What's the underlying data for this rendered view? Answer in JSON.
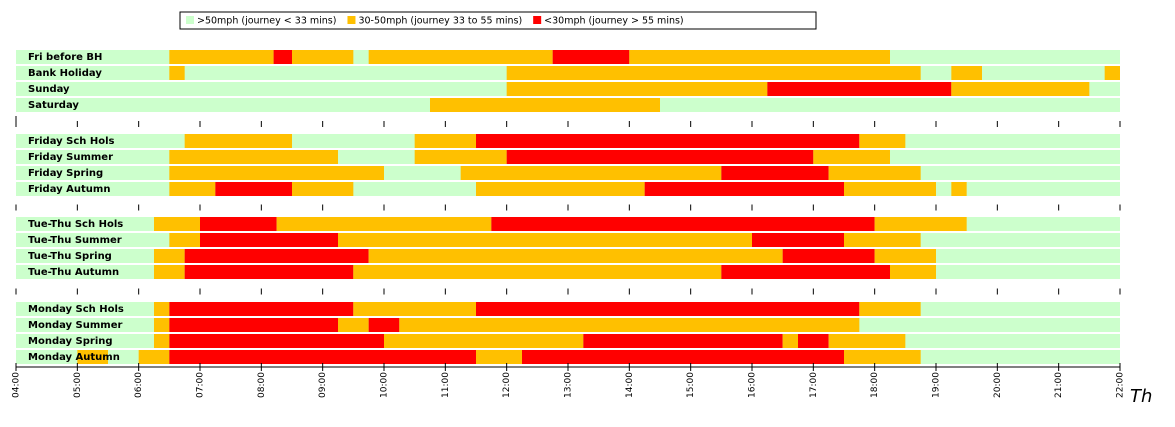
{
  "chart_data": {
    "type": "timeline",
    "legend": [
      {
        "name": ">50mph (journey < 33 mins)",
        "color": "#ccffcc"
      },
      {
        "name": "30-50mph (journey 33 to 55 mins)",
        "color": "#ffc000"
      },
      {
        "name": "<30mph (journey > 55 mins)",
        "color": "#ff0000"
      }
    ],
    "xlim": [
      4,
      22
    ],
    "xticks": [
      {
        "value": 4,
        "label": "04:00"
      },
      {
        "value": 5,
        "label": "05:00"
      },
      {
        "value": 6,
        "label": "06:00"
      },
      {
        "value": 7,
        "label": "07:00"
      },
      {
        "value": 8,
        "label": "08:00"
      },
      {
        "value": 9,
        "label": "09:00"
      },
      {
        "value": 10,
        "label": "10:00"
      },
      {
        "value": 11,
        "label": "11:00"
      },
      {
        "value": 12,
        "label": "12:00"
      },
      {
        "value": 13,
        "label": "13:00"
      },
      {
        "value": 14,
        "label": "14:00"
      },
      {
        "value": 15,
        "label": "15:00"
      },
      {
        "value": 16,
        "label": "16:00"
      },
      {
        "value": 17,
        "label": "17:00"
      },
      {
        "value": 18,
        "label": "18:00"
      },
      {
        "value": 19,
        "label": "19:00"
      },
      {
        "value": 20,
        "label": "20:00"
      },
      {
        "value": 21,
        "label": "21:00"
      },
      {
        "value": 22,
        "label": "22:00"
      }
    ],
    "groups": [
      {
        "rows": [
          {
            "label": "Fri before BH",
            "segments": [
              {
                "start": 6.5,
                "end": 8.2,
                "level": 1
              },
              {
                "start": 8.2,
                "end": 8.5,
                "level": 2
              },
              {
                "start": 8.5,
                "end": 9.5,
                "level": 1
              },
              {
                "start": 9.75,
                "end": 12.75,
                "level": 1
              },
              {
                "start": 12.75,
                "end": 14,
                "level": 2
              },
              {
                "start": 14,
                "end": 18.25,
                "level": 1
              }
            ]
          },
          {
            "label": "Bank Holiday",
            "segments": [
              {
                "start": 6.5,
                "end": 6.75,
                "level": 1
              },
              {
                "start": 12,
                "end": 18.75,
                "level": 1
              },
              {
                "start": 19.25,
                "end": 19.75,
                "level": 1
              },
              {
                "start": 21.75,
                "end": 22,
                "level": 1
              }
            ]
          },
          {
            "label": "Sunday",
            "segments": [
              {
                "start": 12,
                "end": 16.25,
                "level": 1
              },
              {
                "start": 16.25,
                "end": 19.25,
                "level": 2
              },
              {
                "start": 19.25,
                "end": 21.5,
                "level": 1
              }
            ]
          },
          {
            "label": "Saturday",
            "segments": [
              {
                "start": 10.75,
                "end": 14.5,
                "level": 1
              }
            ]
          }
        ]
      },
      {
        "rows": [
          {
            "label": "Friday Sch Hols",
            "segments": [
              {
                "start": 6.75,
                "end": 8.5,
                "level": 1
              },
              {
                "start": 10.5,
                "end": 11.5,
                "level": 1
              },
              {
                "start": 11.5,
                "end": 17.75,
                "level": 2
              },
              {
                "start": 17.75,
                "end": 18.5,
                "level": 1
              }
            ]
          },
          {
            "label": "Friday Summer",
            "segments": [
              {
                "start": 6.5,
                "end": 9.25,
                "level": 1
              },
              {
                "start": 10.5,
                "end": 12,
                "level": 1
              },
              {
                "start": 12,
                "end": 17,
                "level": 2
              },
              {
                "start": 17,
                "end": 18.25,
                "level": 1
              }
            ]
          },
          {
            "label": "Friday Spring",
            "segments": [
              {
                "start": 6.5,
                "end": 10,
                "level": 1
              },
              {
                "start": 11.25,
                "end": 15.5,
                "level": 1
              },
              {
                "start": 15.5,
                "end": 17.25,
                "level": 2
              },
              {
                "start": 17.25,
                "end": 18.75,
                "level": 1
              }
            ]
          },
          {
            "label": "Friday Autumn",
            "segments": [
              {
                "start": 6.5,
                "end": 7.25,
                "level": 1
              },
              {
                "start": 7.25,
                "end": 8.5,
                "level": 2
              },
              {
                "start": 8.5,
                "end": 9.5,
                "level": 1
              },
              {
                "start": 11.5,
                "end": 14.25,
                "level": 1
              },
              {
                "start": 14.25,
                "end": 17.5,
                "level": 2
              },
              {
                "start": 17.5,
                "end": 19,
                "level": 1
              },
              {
                "start": 19.25,
                "end": 19.5,
                "level": 1
              }
            ]
          }
        ]
      },
      {
        "rows": [
          {
            "label": "Tue-Thu Sch Hols",
            "segments": [
              {
                "start": 6.25,
                "end": 7,
                "level": 1
              },
              {
                "start": 7,
                "end": 8.25,
                "level": 2
              },
              {
                "start": 8.25,
                "end": 11.75,
                "level": 1
              },
              {
                "start": 11.75,
                "end": 18,
                "level": 2
              },
              {
                "start": 18,
                "end": 19.5,
                "level": 1
              }
            ]
          },
          {
            "label": "Tue-Thu Summer",
            "segments": [
              {
                "start": 6.5,
                "end": 7,
                "level": 1
              },
              {
                "start": 7,
                "end": 9.25,
                "level": 2
              },
              {
                "start": 9.25,
                "end": 16,
                "level": 1
              },
              {
                "start": 16,
                "end": 17.5,
                "level": 2
              },
              {
                "start": 17.5,
                "end": 18.75,
                "level": 1
              }
            ]
          },
          {
            "label": "Tue-Thu Spring",
            "segments": [
              {
                "start": 6.25,
                "end": 6.75,
                "level": 1
              },
              {
                "start": 6.75,
                "end": 9.75,
                "level": 2
              },
              {
                "start": 9.75,
                "end": 16.5,
                "level": 1
              },
              {
                "start": 16.5,
                "end": 18,
                "level": 2
              },
              {
                "start": 18,
                "end": 19,
                "level": 1
              }
            ]
          },
          {
            "label": "Tue-Thu Autumn",
            "segments": [
              {
                "start": 6.25,
                "end": 6.75,
                "level": 1
              },
              {
                "start": 6.75,
                "end": 9.5,
                "level": 2
              },
              {
                "start": 9.5,
                "end": 15.5,
                "level": 1
              },
              {
                "start": 15.5,
                "end": 18.25,
                "level": 2
              },
              {
                "start": 18.25,
                "end": 19,
                "level": 1
              }
            ]
          }
        ]
      },
      {
        "rows": [
          {
            "label": "Monday Sch Hols",
            "segments": [
              {
                "start": 6.25,
                "end": 6.5,
                "level": 1
              },
              {
                "start": 6.5,
                "end": 9.5,
                "level": 2
              },
              {
                "start": 9.5,
                "end": 11.5,
                "level": 1
              },
              {
                "start": 11.5,
                "end": 17.75,
                "level": 2
              },
              {
                "start": 17.75,
                "end": 18.75,
                "level": 1
              }
            ]
          },
          {
            "label": "Monday Summer",
            "segments": [
              {
                "start": 6.25,
                "end": 6.5,
                "level": 1
              },
              {
                "start": 6.5,
                "end": 9.25,
                "level": 2
              },
              {
                "start": 9.25,
                "end": 9.75,
                "level": 1
              },
              {
                "start": 9.75,
                "end": 10.25,
                "level": 2
              },
              {
                "start": 10.25,
                "end": 17.75,
                "level": 1
              }
            ]
          },
          {
            "label": "Monday Spring",
            "segments": [
              {
                "start": 6.25,
                "end": 6.5,
                "level": 1
              },
              {
                "start": 6.5,
                "end": 10,
                "level": 2
              },
              {
                "start": 10,
                "end": 13.25,
                "level": 1
              },
              {
                "start": 13.25,
                "end": 16.5,
                "level": 2
              },
              {
                "start": 16.5,
                "end": 16.75,
                "level": 1
              },
              {
                "start": 16.75,
                "end": 17.25,
                "level": 2
              },
              {
                "start": 17.25,
                "end": 18.5,
                "level": 1
              }
            ]
          },
          {
            "label": "Monday Autumn",
            "segments": [
              {
                "start": 5,
                "end": 5.5,
                "level": 1
              },
              {
                "start": 6,
                "end": 6.5,
                "level": 1
              },
              {
                "start": 6.5,
                "end": 11.5,
                "level": 2
              },
              {
                "start": 11.5,
                "end": 12.25,
                "level": 1
              },
              {
                "start": 12.25,
                "end": 17.5,
                "level": 2
              },
              {
                "start": 17.5,
                "end": 18.75,
                "level": 1
              }
            ]
          }
        ]
      }
    ],
    "annotation": "Th"
  }
}
